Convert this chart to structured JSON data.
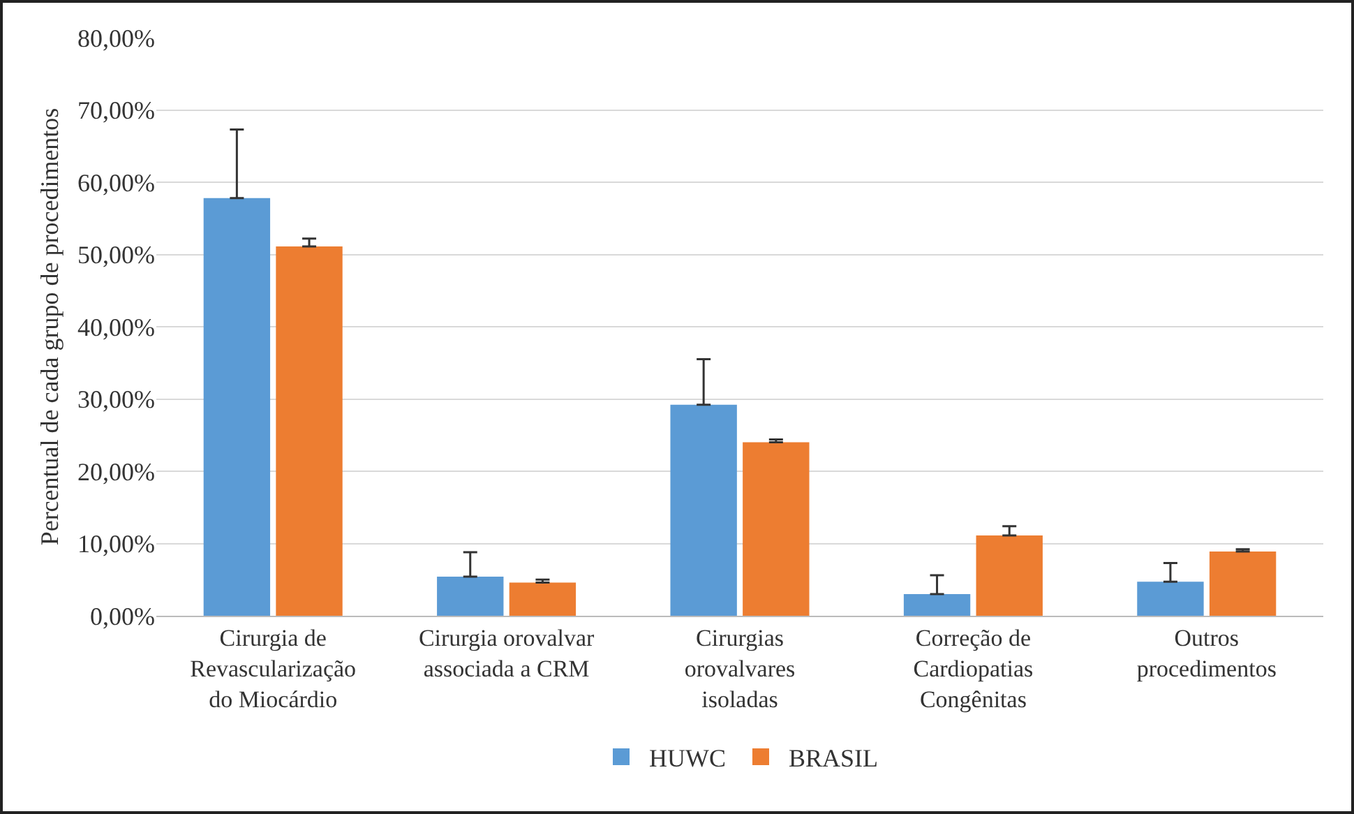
{
  "chart_data": {
    "type": "bar",
    "ylabel": "Percentual de cada grupo de procedimentos",
    "categories": [
      "Cirurgia de Revascularização do Miocárdio",
      "Cirurgia orovalvar associada a CRM",
      "Cirurgias orovalvares isoladas",
      "Correção de Cardiopatias Congênitas",
      "Outros procedimentos"
    ],
    "series": [
      {
        "name": "HUWC",
        "color": "#5b9bd5",
        "values": [
          57.8,
          5.4,
          29.2,
          3.0,
          4.7
        ],
        "errors": [
          [
            57.8,
            67.3
          ],
          [
            5.4,
            8.8
          ],
          [
            29.2,
            35.5
          ],
          [
            3.0,
            5.6
          ],
          [
            4.7,
            7.3
          ]
        ]
      },
      {
        "name": "BRASIL",
        "color": "#ed7d31",
        "values": [
          51.1,
          4.6,
          24.0,
          11.1,
          8.9
        ],
        "errors": [
          [
            51.1,
            52.2
          ],
          [
            4.6,
            5.0
          ],
          [
            24.0,
            24.4
          ],
          [
            11.1,
            12.4
          ],
          [
            8.9,
            9.2
          ]
        ]
      }
    ],
    "ylim": [
      0,
      80
    ],
    "yticks": [
      {
        "value": 0,
        "label": "0,00%"
      },
      {
        "value": 10,
        "label": "10,00%"
      },
      {
        "value": 20,
        "label": "20,00%"
      },
      {
        "value": 30,
        "label": "30,00%"
      },
      {
        "value": 40,
        "label": "40,00%"
      },
      {
        "value": 50,
        "label": "50,00%"
      },
      {
        "value": 60,
        "label": "60,00%"
      },
      {
        "value": 70,
        "label": "70,00%"
      },
      {
        "value": 80,
        "label": "80,00%"
      }
    ],
    "grid": "y",
    "legend": "bottom"
  }
}
